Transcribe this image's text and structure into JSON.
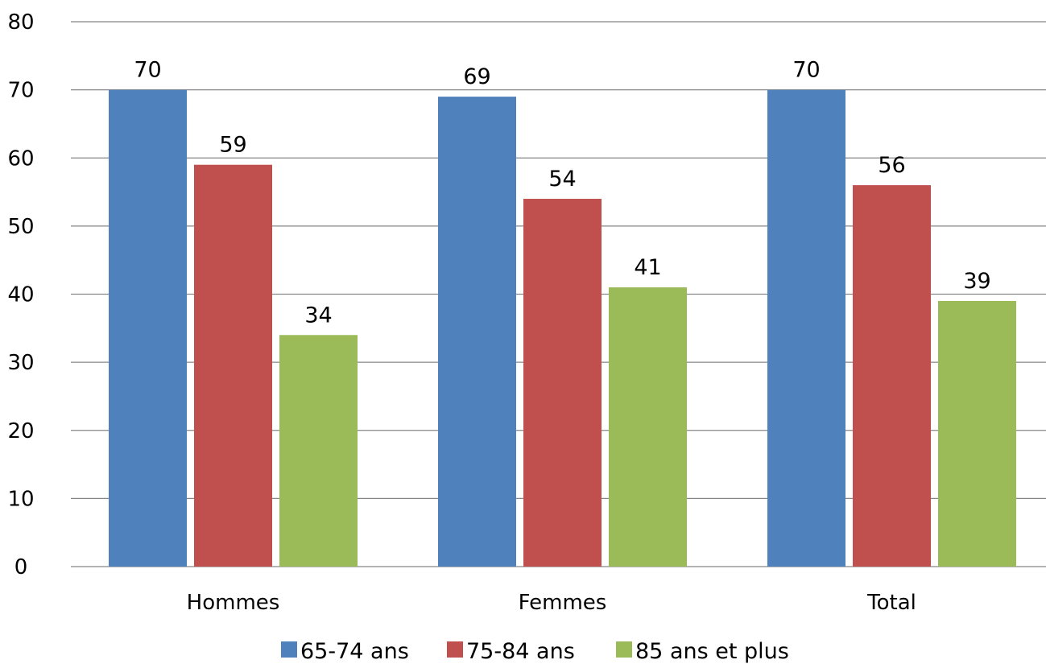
{
  "chart_data": {
    "type": "bar",
    "categories": [
      "Hommes",
      "Femmes",
      "Total"
    ],
    "series": [
      {
        "name": "65-74 ans",
        "values": [
          70,
          69,
          70
        ],
        "labels": [
          "70",
          "69",
          "70"
        ],
        "color": "#4F81BD"
      },
      {
        "name": "75-84 ans",
        "values": [
          59,
          54,
          56
        ],
        "labels": [
          "59",
          "54",
          "56"
        ],
        "color": "#C0504D"
      },
      {
        "name": "85 ans et plus",
        "values": [
          34,
          41,
          39
        ],
        "labels": [
          "34",
          "41",
          "39"
        ],
        "color": "#9BBB59"
      }
    ],
    "y_ticks": [
      "0",
      "10",
      "20",
      "30",
      "40",
      "50",
      "60",
      "70",
      "80"
    ],
    "ylim": [
      0,
      80
    ],
    "grid": true,
    "legend_position": "bottom"
  }
}
